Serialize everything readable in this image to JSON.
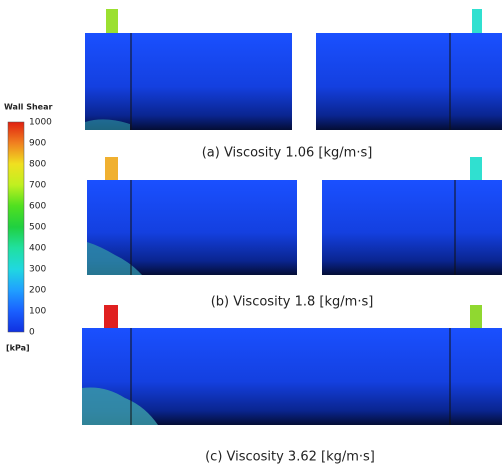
{
  "colorbar": {
    "title": "Wall Shear",
    "unit": "[kPa]",
    "ticks": [
      "0",
      "100",
      "200",
      "300",
      "400",
      "500",
      "600",
      "700",
      "800",
      "900",
      "1000"
    ]
  },
  "panels": [
    {
      "caption": "(a)  Viscosity  1.06  [kg/m·s]"
    },
    {
      "caption": "(b)  Viscosity  1.8  [kg/m·s]"
    },
    {
      "caption": "(c)  Viscosity  3.62  [kg/m·s]"
    }
  ]
}
